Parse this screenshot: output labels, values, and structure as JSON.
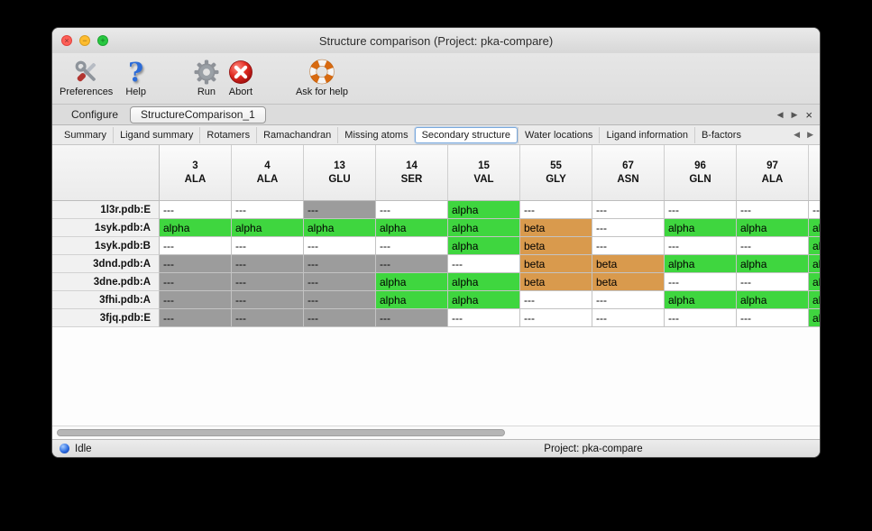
{
  "colors": {
    "alpha_green": "#3fd63f",
    "beta_orange": "#d99a4d",
    "missing_gray": "#9c9c9c",
    "accent_blue": "#7aa9dd"
  },
  "window": {
    "title": "Structure comparison (Project: pka-compare)",
    "traffic_lights": [
      {
        "name": "close",
        "glyph": "×"
      },
      {
        "name": "minimize",
        "glyph": "−"
      },
      {
        "name": "zoom",
        "glyph": "+"
      }
    ]
  },
  "toolbar": {
    "items": [
      {
        "label": "Preferences",
        "icon": "tools"
      },
      {
        "label": "Help",
        "icon": "question"
      },
      {
        "label": "Run",
        "icon": "gear"
      },
      {
        "label": "Abort",
        "icon": "abort"
      },
      {
        "label": "Ask for help",
        "icon": "lifering"
      }
    ]
  },
  "main_tabs": {
    "items": [
      {
        "label": "Configure",
        "active": false
      },
      {
        "label": "StructureComparison_1",
        "active": true
      }
    ],
    "controls": {
      "prev": "◀",
      "next": "▶",
      "close": "×"
    }
  },
  "sub_tabs": {
    "items": [
      {
        "label": "Summary",
        "active": false
      },
      {
        "label": "Ligand summary",
        "active": false
      },
      {
        "label": "Rotamers",
        "active": false
      },
      {
        "label": "Ramachandran",
        "active": false
      },
      {
        "label": "Missing atoms",
        "active": false
      },
      {
        "label": "Secondary structure",
        "active": true
      },
      {
        "label": "Water locations",
        "active": false
      },
      {
        "label": "Ligand information",
        "active": false
      },
      {
        "label": "B-factors",
        "active": false
      }
    ],
    "controls": {
      "prev": "◀",
      "next": "▶"
    }
  },
  "table": {
    "columns": [
      {
        "number": "3",
        "residue": "ALA"
      },
      {
        "number": "4",
        "residue": "ALA"
      },
      {
        "number": "13",
        "residue": "GLU"
      },
      {
        "number": "14",
        "residue": "SER"
      },
      {
        "number": "15",
        "residue": "VAL"
      },
      {
        "number": "55",
        "residue": "GLY"
      },
      {
        "number": "67",
        "residue": "ASN"
      },
      {
        "number": "96",
        "residue": "GLN"
      },
      {
        "number": "97",
        "residue": "ALA"
      },
      {
        "number": "",
        "residue": "",
        "clipped": true
      }
    ],
    "rows": [
      {
        "label": "1l3r.pdb:E",
        "cells": [
          {
            "text": "---",
            "style": "white"
          },
          {
            "text": "---",
            "style": "white"
          },
          {
            "text": "---",
            "style": "gray"
          },
          {
            "text": "---",
            "style": "white"
          },
          {
            "text": "alpha",
            "style": "green"
          },
          {
            "text": "---",
            "style": "white"
          },
          {
            "text": "---",
            "style": "white"
          },
          {
            "text": "---",
            "style": "white"
          },
          {
            "text": "---",
            "style": "white"
          },
          {
            "text": "---",
            "style": "white"
          }
        ]
      },
      {
        "label": "1syk.pdb:A",
        "cells": [
          {
            "text": "alpha",
            "style": "green"
          },
          {
            "text": "alpha",
            "style": "green"
          },
          {
            "text": "alpha",
            "style": "green"
          },
          {
            "text": "alpha",
            "style": "green"
          },
          {
            "text": "alpha",
            "style": "green"
          },
          {
            "text": "beta",
            "style": "orange"
          },
          {
            "text": "---",
            "style": "white"
          },
          {
            "text": "alpha",
            "style": "green"
          },
          {
            "text": "alpha",
            "style": "green"
          },
          {
            "text": "alpha",
            "style": "green"
          }
        ]
      },
      {
        "label": "1syk.pdb:B",
        "cells": [
          {
            "text": "---",
            "style": "white"
          },
          {
            "text": "---",
            "style": "white"
          },
          {
            "text": "---",
            "style": "white"
          },
          {
            "text": "---",
            "style": "white"
          },
          {
            "text": "alpha",
            "style": "green"
          },
          {
            "text": "beta",
            "style": "orange"
          },
          {
            "text": "---",
            "style": "white"
          },
          {
            "text": "---",
            "style": "white"
          },
          {
            "text": "---",
            "style": "white"
          },
          {
            "text": "alpha",
            "style": "green"
          }
        ]
      },
      {
        "label": "3dnd.pdb:A",
        "cells": [
          {
            "text": "---",
            "style": "gray"
          },
          {
            "text": "---",
            "style": "gray"
          },
          {
            "text": "---",
            "style": "gray"
          },
          {
            "text": "---",
            "style": "gray"
          },
          {
            "text": "---",
            "style": "white"
          },
          {
            "text": "beta",
            "style": "orange"
          },
          {
            "text": "beta",
            "style": "orange"
          },
          {
            "text": "alpha",
            "style": "green"
          },
          {
            "text": "alpha",
            "style": "green"
          },
          {
            "text": "alpha",
            "style": "green"
          }
        ]
      },
      {
        "label": "3dne.pdb:A",
        "cells": [
          {
            "text": "---",
            "style": "gray"
          },
          {
            "text": "---",
            "style": "gray"
          },
          {
            "text": "---",
            "style": "gray"
          },
          {
            "text": "alpha",
            "style": "green"
          },
          {
            "text": "alpha",
            "style": "green"
          },
          {
            "text": "beta",
            "style": "orange"
          },
          {
            "text": "beta",
            "style": "orange"
          },
          {
            "text": "---",
            "style": "white"
          },
          {
            "text": "---",
            "style": "white"
          },
          {
            "text": "alpha",
            "style": "green"
          }
        ]
      },
      {
        "label": "3fhi.pdb:A",
        "cells": [
          {
            "text": "---",
            "style": "gray"
          },
          {
            "text": "---",
            "style": "gray"
          },
          {
            "text": "---",
            "style": "gray"
          },
          {
            "text": "alpha",
            "style": "green"
          },
          {
            "text": "alpha",
            "style": "green"
          },
          {
            "text": "---",
            "style": "white"
          },
          {
            "text": "---",
            "style": "white"
          },
          {
            "text": "alpha",
            "style": "green"
          },
          {
            "text": "alpha",
            "style": "green"
          },
          {
            "text": "alpha",
            "style": "green"
          }
        ]
      },
      {
        "label": "3fjq.pdb:E",
        "cells": [
          {
            "text": "---",
            "style": "gray"
          },
          {
            "text": "---",
            "style": "gray"
          },
          {
            "text": "---",
            "style": "gray"
          },
          {
            "text": "---",
            "style": "gray"
          },
          {
            "text": "---",
            "style": "white"
          },
          {
            "text": "---",
            "style": "white"
          },
          {
            "text": "---",
            "style": "white"
          },
          {
            "text": "---",
            "style": "white"
          },
          {
            "text": "---",
            "style": "white"
          },
          {
            "text": "alpha",
            "style": "green"
          }
        ]
      }
    ]
  },
  "status_bar": {
    "status": "Idle",
    "project": "Project: pka-compare"
  }
}
